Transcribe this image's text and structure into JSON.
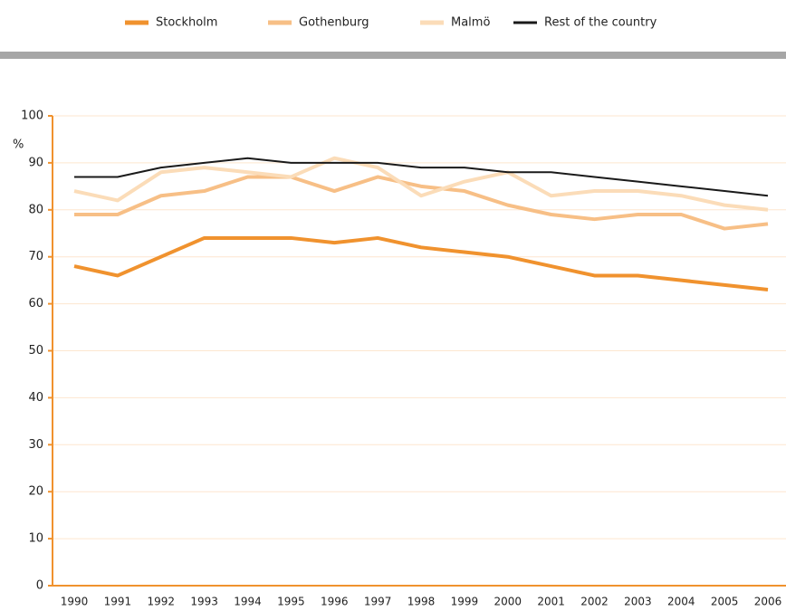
{
  "chart_data": {
    "type": "line",
    "y_label": "%",
    "categories": [
      "1990",
      "1991",
      "1992",
      "1993",
      "1994",
      "1995",
      "1996",
      "1997",
      "1998",
      "1999",
      "2000",
      "2001",
      "2002",
      "2003",
      "2004",
      "2005",
      "2006"
    ],
    "series": [
      {
        "name": "Stockholm",
        "color": "#f0922e",
        "width": 4,
        "values": [
          68,
          66,
          70,
          74,
          74,
          74,
          73,
          74,
          72,
          71,
          70,
          68,
          66,
          66,
          65,
          64,
          63
        ]
      },
      {
        "name": "Gothenburg",
        "color": "#f7bf86",
        "width": 4,
        "values": [
          79,
          79,
          83,
          84,
          87,
          87,
          84,
          87,
          85,
          84,
          81,
          79,
          78,
          79,
          79,
          76,
          77
        ]
      },
      {
        "name": "Malmö",
        "color": "#fbdcb8",
        "width": 4,
        "values": [
          84,
          82,
          88,
          89,
          88,
          87,
          91,
          89,
          83,
          86,
          88,
          83,
          84,
          84,
          83,
          81,
          80
        ]
      },
      {
        "name": "Rest of the country",
        "color": "#1a1a1a",
        "width": 2,
        "values": [
          87,
          87,
          89,
          90,
          91,
          90,
          90,
          90,
          89,
          89,
          88,
          88,
          87,
          86,
          85,
          84,
          83
        ]
      }
    ],
    "ylim": [
      0,
      100
    ],
    "yticks": [
      0,
      10,
      20,
      30,
      40,
      50,
      60,
      70,
      80,
      90,
      100
    ],
    "grid": true
  }
}
